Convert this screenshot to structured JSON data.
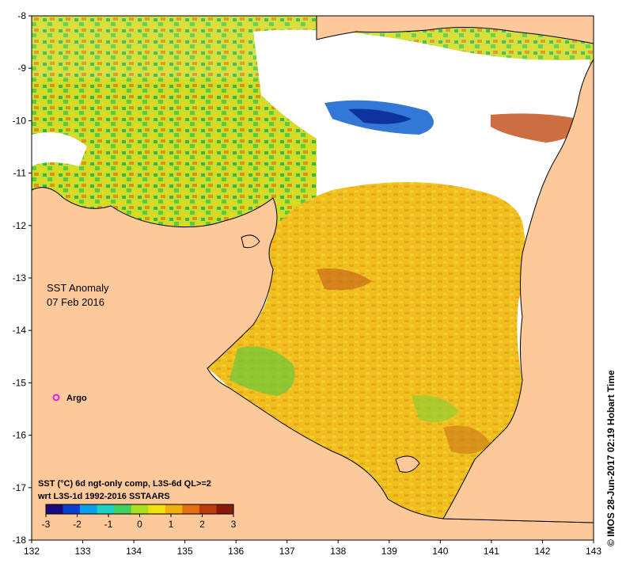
{
  "map": {
    "title": "SST Anomaly",
    "date": "07 Feb 2016",
    "legend_line1": "SST (°C) 6d ngt-only comp, L3S-6d QL>=2",
    "legend_line2": "wrt L3S-1d 1992-2016 SSTAARS",
    "argo_label": "Argo",
    "credit": "© IMOS 28-Jun-2017 02:19 Hobart Time",
    "colorbar_ticks": [
      "-3",
      "-2",
      "-1",
      "0",
      "1",
      "2",
      "3"
    ],
    "colorbar_colors": [
      "#1a0a7a",
      "#0a3fd0",
      "#0aa0e8",
      "#1dd0c0",
      "#40d060",
      "#a8e020",
      "#f0e010",
      "#f0b010",
      "#e07010",
      "#c03a10",
      "#8a1a08"
    ],
    "x_ticks": [
      "132",
      "133",
      "134",
      "135",
      "136",
      "137",
      "138",
      "139",
      "140",
      "141",
      "142",
      "143"
    ],
    "y_ticks": [
      "-8",
      "-9",
      "-10",
      "-11",
      "-12",
      "-13",
      "-14",
      "-15",
      "-16",
      "-17",
      "-18"
    ],
    "land_color": "#fdc99a",
    "argo_color": "#e020e0"
  }
}
